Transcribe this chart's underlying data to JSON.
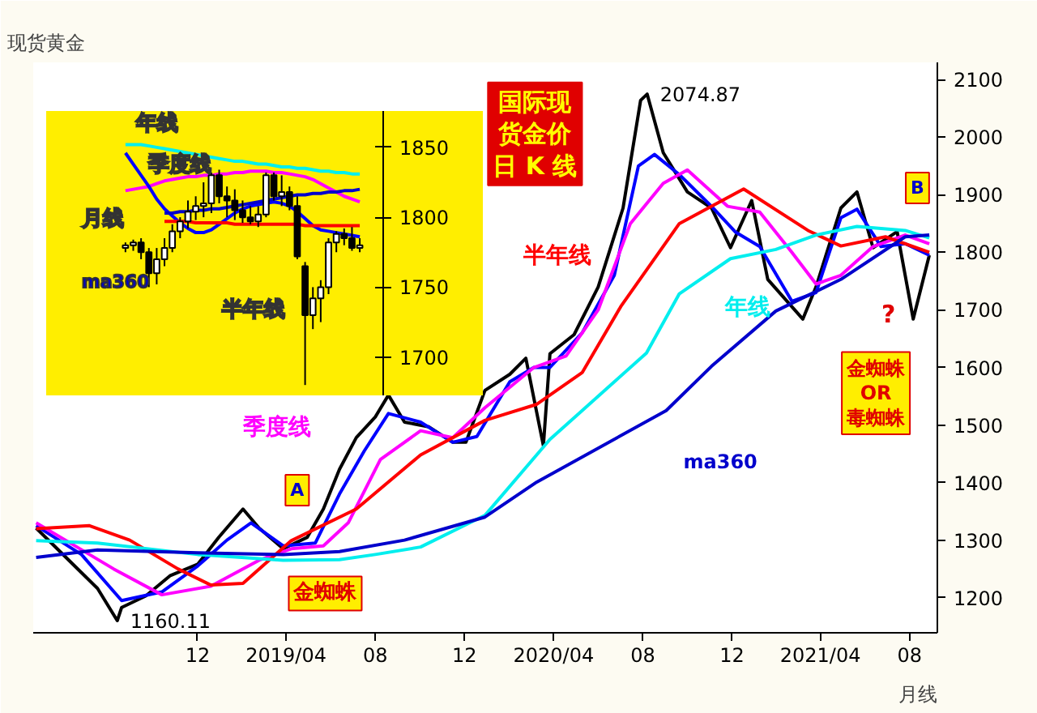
{
  "chart_data": [
    {
      "type": "line",
      "title": "现货黄金",
      "xlim": [
        "2018-04-20",
        "2021-09-08"
      ],
      "ylim": [
        1139,
        2130
      ],
      "xticks": [
        {
          "value": "2018-12-01",
          "label": "12"
        },
        {
          "value": "2019-04-01",
          "label": "2019/04"
        },
        {
          "value": "2019-08-01",
          "label": "08"
        },
        {
          "value": "2019-12-01",
          "label": "12"
        },
        {
          "value": "2020-04-01",
          "label": "2020/04"
        },
        {
          "value": "2020-08-01",
          "label": "08"
        },
        {
          "value": "2020-12-01",
          "label": "12"
        },
        {
          "value": "2021-04-01",
          "label": "2021/04"
        },
        {
          "value": "2021-08-01",
          "label": "08"
        }
      ],
      "yticks": [
        1200,
        1300,
        1400,
        1500,
        1600,
        1700,
        1800,
        1900,
        2000,
        2100
      ],
      "grid": false,
      "series": [
        {
          "color": "#000000",
          "x": [
            "2018-04-24",
            "2018-06-03",
            "2018-07-17",
            "2018-08-13",
            "2018-08-19",
            "2018-09-21",
            "2018-10-24",
            "2018-12-01",
            "2018-12-30",
            "2019-02-01",
            "2019-02-23",
            "2019-03-28",
            "2019-04-30",
            "2019-05-22",
            "2019-06-13",
            "2019-07-06",
            "2019-08-01",
            "2019-08-19",
            "2019-09-10",
            "2019-10-13",
            "2019-11-15",
            "2019-12-03",
            "2019-12-29",
            "2020-02-01",
            "2020-02-23",
            "2020-03-18",
            "2020-03-27",
            "2020-04-29",
            "2020-06-01",
            "2020-07-05",
            "2020-07-29",
            "2020-08-07",
            "2020-08-29",
            "2020-10-01",
            "2020-11-03",
            "2020-11-29",
            "2020-12-28",
            "2021-01-19",
            "2021-03-08",
            "2021-03-26",
            "2021-04-29",
            "2021-05-21",
            "2021-06-12",
            "2021-07-15",
            "2021-08-06",
            "2021-08-28"
          ],
          "values": [
            1321,
            1271,
            1216,
            1160.11,
            1183,
            1203,
            1238,
            1258,
            1305,
            1354,
            1321,
            1285,
            1305,
            1354,
            1423,
            1478,
            1514,
            1552,
            1505,
            1497,
            1470,
            1470,
            1560,
            1588,
            1616,
            1464,
            1624,
            1657,
            1740,
            1877,
            2064,
            2074.87,
            1973,
            1905,
            1877,
            1808,
            1890,
            1753,
            1684,
            1740,
            1877,
            1905,
            1808,
            1836,
            1684,
            1795
          ]
        },
        {
          "color": "#0000ff",
          "x": [
            "2018-04-24",
            "2018-06-25",
            "2018-08-19",
            "2018-10-13",
            "2018-12-01",
            "2019-01-10",
            "2019-02-12",
            "2019-03-28",
            "2019-05-11",
            "2019-06-13",
            "2019-07-17",
            "2019-08-19",
            "2019-10-02",
            "2019-11-15",
            "2019-12-18",
            "2020-02-01",
            "2020-03-05",
            "2020-03-27",
            "2020-05-10",
            "2020-06-23",
            "2020-07-26",
            "2020-08-17",
            "2020-09-20",
            "2020-11-03",
            "2020-12-06",
            "2021-01-08",
            "2021-02-21",
            "2021-03-26",
            "2021-04-29",
            "2021-05-21",
            "2021-06-23",
            "2021-07-26",
            "2021-08-28"
          ],
          "values": [
            1325,
            1275,
            1195,
            1210,
            1255,
            1300,
            1330,
            1290,
            1295,
            1380,
            1455,
            1520,
            1505,
            1470,
            1480,
            1575,
            1600,
            1600,
            1660,
            1760,
            1950,
            1970,
            1935,
            1880,
            1835,
            1810,
            1715,
            1730,
            1860,
            1875,
            1810,
            1815,
            1795
          ]
        },
        {
          "name": "季度线",
          "color": "#ff00ff",
          "x": [
            "2018-04-24",
            "2018-06-03",
            "2018-08-08",
            "2018-10-13",
            "2018-12-19",
            "2019-02-23",
            "2019-04-08",
            "2019-05-22",
            "2019-06-25",
            "2019-08-08",
            "2019-10-02",
            "2019-11-15",
            "2019-12-29",
            "2020-03-05",
            "2020-04-18",
            "2020-06-01",
            "2020-07-15",
            "2020-08-29",
            "2020-10-01",
            "2020-11-25",
            "2021-01-08",
            "2021-02-21",
            "2021-03-26",
            "2021-04-29",
            "2021-06-12",
            "2021-07-26",
            "2021-08-28"
          ],
          "values": [
            1330,
            1300,
            1250,
            1205,
            1220,
            1265,
            1285,
            1290,
            1330,
            1440,
            1490,
            1478,
            1530,
            1600,
            1620,
            1700,
            1850,
            1920,
            1943,
            1880,
            1870,
            1800,
            1745,
            1760,
            1810,
            1830,
            1815
          ]
        },
        {
          "name": "半年线",
          "color": "#ff0000",
          "x": [
            "2018-04-24",
            "2018-07-06",
            "2018-08-30",
            "2018-11-04",
            "2018-12-19",
            "2019-02-01",
            "2019-04-08",
            "2019-07-06",
            "2019-10-02",
            "2019-12-29",
            "2020-03-09",
            "2020-05-10",
            "2020-07-02",
            "2020-09-20",
            "2020-12-17",
            "2021-03-15",
            "2021-04-29",
            "2021-06-29",
            "2021-08-28"
          ],
          "values": [
            1320,
            1325,
            1300,
            1250,
            1222,
            1225,
            1299,
            1354,
            1448,
            1508,
            1536,
            1591,
            1706,
            1850,
            1910,
            1838,
            1811,
            1827,
            1800
          ]
        },
        {
          "name": "年线",
          "color": "#00eeee",
          "x": [
            "2018-04-24",
            "2018-07-17",
            "2018-12-01",
            "2019-03-28",
            "2019-06-13",
            "2019-08-01",
            "2019-10-02",
            "2019-12-29",
            "2020-03-27",
            "2020-06-23",
            "2020-08-06",
            "2020-09-20",
            "2020-11-29",
            "2021-01-30",
            "2021-03-26",
            "2021-05-21",
            "2021-07-26",
            "2021-08-28"
          ],
          "values": [
            1299,
            1295,
            1275,
            1265,
            1266,
            1275,
            1288,
            1343,
            1475,
            1575,
            1625,
            1728,
            1789,
            1805,
            1830,
            1845,
            1838,
            1825
          ]
        },
        {
          "name": "ma360",
          "color": "#0000cc",
          "x": [
            "2018-04-24",
            "2018-07-17",
            "2018-12-01",
            "2019-03-28",
            "2019-06-13",
            "2019-09-10",
            "2019-12-29",
            "2020-03-09",
            "2020-09-02",
            "2020-11-03",
            "2021-01-30",
            "2021-04-29",
            "2021-07-26",
            "2021-08-28"
          ],
          "values": [
            1270,
            1283,
            1278,
            1275,
            1280,
            1300,
            1340,
            1401,
            1525,
            1602,
            1698,
            1753,
            1827,
            1830
          ]
        }
      ],
      "annotations": [
        {
          "text": "2074.87",
          "x": "2020-08-07",
          "y": 2074.87
        },
        {
          "text": "1160.11",
          "x": "2018-08-13",
          "y": 1160.11
        },
        "国际现货金价日 K 线",
        "金蜘蛛",
        "金蜘蛛 OR 毒蜘蛛",
        "A",
        "B",
        "?",
        "月线"
      ]
    },
    {
      "type": "candlestick",
      "categories": [
        null,
        null,
        null,
        null,
        null,
        null,
        null,
        null,
        null,
        null,
        null,
        null,
        null,
        null,
        null,
        null,
        null,
        null,
        null,
        null,
        null,
        null,
        null,
        null,
        null,
        null,
        null,
        null,
        null,
        null,
        null
      ],
      "ylim": [
        1672,
        1876
      ],
      "yticks": [
        1700,
        1750,
        1800,
        1850
      ],
      "grid": false,
      "ohlc": [
        [
          1778,
          1782,
          1775,
          1780
        ],
        [
          1780,
          1784,
          1776,
          1782
        ],
        [
          1782,
          1785,
          1770,
          1775
        ],
        [
          1775,
          1778,
          1750,
          1760
        ],
        [
          1760,
          1778,
          1752,
          1770
        ],
        [
          1770,
          1785,
          1765,
          1778
        ],
        [
          1778,
          1795,
          1775,
          1790
        ],
        [
          1790,
          1800,
          1785,
          1797
        ],
        [
          1797,
          1812,
          1792,
          1804
        ],
        [
          1804,
          1815,
          1798,
          1808
        ],
        [
          1808,
          1825,
          1800,
          1810
        ],
        [
          1810,
          1832,
          1803,
          1830
        ],
        [
          1830,
          1834,
          1810,
          1815
        ],
        [
          1815,
          1822,
          1800,
          1812
        ],
        [
          1812,
          1820,
          1798,
          1805
        ],
        [
          1805,
          1812,
          1796,
          1800
        ],
        [
          1800,
          1808,
          1795,
          1797
        ],
        [
          1797,
          1808,
          1793,
          1802
        ],
        [
          1802,
          1832,
          1800,
          1830
        ],
        [
          1830,
          1832,
          1812,
          1815
        ],
        [
          1815,
          1830,
          1808,
          1818
        ],
        [
          1818,
          1822,
          1805,
          1808
        ],
        [
          1808,
          1815,
          1770,
          1772
        ],
        [
          1765,
          1768,
          1680,
          1730
        ],
        [
          1730,
          1750,
          1720,
          1742
        ],
        [
          1742,
          1755,
          1725,
          1750
        ],
        [
          1750,
          1785,
          1745,
          1782
        ],
        [
          1782,
          1790,
          1775,
          1788
        ],
        [
          1788,
          1792,
          1780,
          1785
        ],
        [
          1785,
          1793,
          1776,
          1778
        ],
        [
          1778,
          1785,
          1775,
          1780
        ]
      ],
      "series": [
        {
          "name": "年线",
          "type": "line",
          "color": "#00eeee",
          "values": [
            1852,
            1852,
            1852,
            1851,
            1850,
            1849,
            1848,
            1847,
            1846,
            1845,
            1844,
            1843,
            1842,
            1841,
            1840,
            1840,
            1839,
            1838,
            1838,
            1837,
            1836,
            1836,
            1835,
            1835,
            1834,
            1833,
            1833,
            1832,
            1832,
            1831,
            1831
          ]
        },
        {
          "name": "季度线",
          "type": "line",
          "color": "#ff00ff",
          "values": [
            1819,
            1820,
            1821,
            1822,
            1824,
            1826,
            1827,
            1828,
            1829,
            1829,
            1830,
            1830,
            1831,
            1831,
            1832,
            1832,
            1833,
            1833,
            1833,
            1832,
            1832,
            1831,
            1830,
            1829,
            1827,
            1824,
            1821,
            1818,
            1815,
            1813,
            1811
          ]
        },
        {
          "name": "月线",
          "type": "line",
          "color": "#0000ff",
          "values": [
            1846,
            1838,
            1830,
            1822,
            1813,
            1806,
            1801,
            1796,
            1792,
            1789,
            1789,
            1791,
            1795,
            1799,
            1803,
            1806,
            1808,
            1809,
            1810,
            1811,
            1810,
            1808,
            1804,
            1799,
            1794,
            1791,
            1790,
            1789,
            1788,
            1787,
            1786
          ]
        },
        {
          "name": "ma360",
          "type": "line",
          "color": "#0000cc",
          "values": [
            null,
            null,
            null,
            null,
            null,
            1803,
            1803,
            1804,
            1804,
            1805,
            1805,
            1806,
            1806,
            1807,
            1808,
            1809,
            1810,
            1811,
            1812,
            1813,
            1814,
            1815,
            1816,
            1816,
            1817,
            1817,
            1818,
            1818,
            1819,
            1819,
            1820
          ]
        },
        {
          "name": "半年线",
          "type": "line",
          "color": "#ff0000",
          "values": [
            null,
            null,
            null,
            null,
            null,
            1797,
            1797,
            1797,
            1797,
            1796,
            1796,
            1796,
            1796,
            1796,
            1795,
            1795,
            1795,
            1795,
            1795,
            1795,
            1795,
            1795,
            1795,
            1794,
            1794,
            1794,
            1794,
            1794,
            1794,
            1794,
            1794
          ]
        }
      ]
    }
  ]
}
